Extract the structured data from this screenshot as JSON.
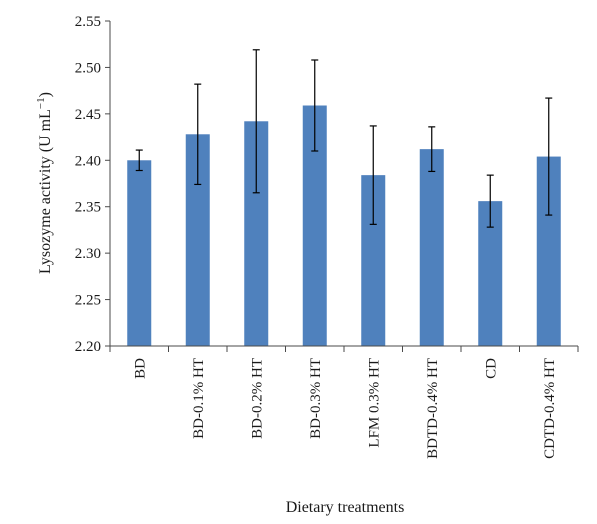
{
  "chart_data": {
    "type": "bar",
    "categories": [
      "BD",
      "BD-0.1% HT",
      "BD-0.2% HT",
      "BD-0.3% HT",
      "LFM 0.3% HT",
      "BDTD-0.4% HT",
      "CD",
      "CDTD-0.4% HT"
    ],
    "series": [
      {
        "values": [
          2.4,
          2.428,
          2.442,
          2.459,
          2.384,
          2.412,
          2.356,
          2.404
        ],
        "error": [
          0.011,
          0.054,
          0.077,
          0.049,
          0.053,
          0.024,
          0.028,
          0.063
        ],
        "color": "#4f81bd"
      }
    ],
    "ylabel": "Lysozyme activity (U mL",
    "ylabel_superscript": "−1",
    "ylabel_close": ")",
    "xlabel": "Dietary treatments",
    "ylim": [
      2.2,
      2.55
    ],
    "yticks": [
      "2.20",
      "2.25",
      "2.30",
      "2.35",
      "2.40",
      "2.45",
      "2.50",
      "2.55"
    ],
    "grid": false,
    "legend": "none"
  }
}
